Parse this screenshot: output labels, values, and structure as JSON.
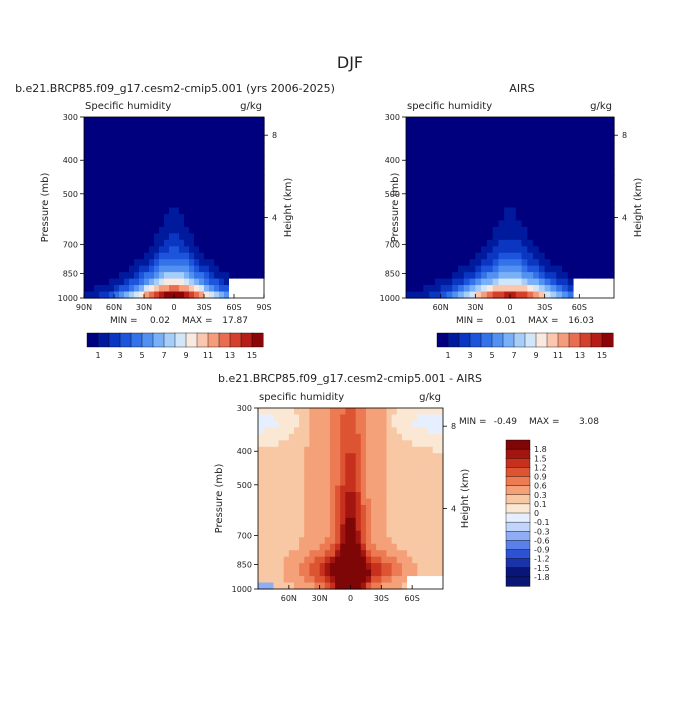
{
  "page": {
    "main_title": "DJF"
  },
  "palettes": {
    "abs": [
      "#00007f",
      "#001a9e",
      "#0a36c2",
      "#1c55db",
      "#3372e8",
      "#5291f2",
      "#79b0f7",
      "#a6cef9",
      "#d2e6fa",
      "#f9e9df",
      "#fac6ae",
      "#f59c7c",
      "#e96d50",
      "#d3412e",
      "#b41e16",
      "#8c0509",
      "#5c0000"
    ],
    "diff": [
      "#0a1578",
      "#1a33a8",
      "#2e52d4",
      "#5a80ea",
      "#8eadf4",
      "#c3d4fa",
      "#e6efff",
      "#fbe8d4",
      "#f8c7a4",
      "#f4a179",
      "#ec7a52",
      "#dd5433",
      "#c6301d",
      "#a21510",
      "#7e0607"
    ]
  },
  "chart_data": [
    {
      "id": "model",
      "type": "heatmap",
      "title": "b.e21.BRCP85.f09_g17.cesm2-cmip5.001 (yrs 2006-2025)",
      "left_label": "Specific humidity",
      "right_label": "g/kg",
      "ylabel": "Pressure (mb)",
      "right_axis_label": "Height (km)",
      "y_ticks": [
        300,
        400,
        500,
        700,
        850,
        1000
      ],
      "right_ticks": [
        8,
        4
      ],
      "x_ticks": [
        "90N",
        "60N",
        "30N",
        "0",
        "30S",
        "60S",
        "90S"
      ],
      "x_tick_lats": [
        90,
        60,
        30,
        0,
        -30,
        -60,
        -90
      ],
      "x_range": [
        90,
        -90
      ],
      "y_range": [
        300,
        1000
      ],
      "min_label": "MIN =",
      "min": "0.02",
      "max_label": "MAX =",
      "max": "17.87",
      "peak": 17.87,
      "missing_right": true,
      "colorbar_ticks": [
        "1",
        "3",
        "5",
        "7",
        "9",
        "11",
        "13",
        "15"
      ],
      "colorbar_levels": 16
    },
    {
      "id": "obs",
      "type": "heatmap",
      "title": "AIRS",
      "left_label": "specific humidity",
      "right_label": "g/kg",
      "ylabel": "Pressure (mb)",
      "right_axis_label": "Height (km)",
      "y_ticks": [
        300,
        400,
        500,
        700,
        850,
        1000
      ],
      "right_ticks": [
        8,
        4
      ],
      "x_ticks": [
        "60N",
        "30N",
        "0",
        "30S",
        "60S"
      ],
      "x_tick_lats": [
        60,
        30,
        0,
        -30,
        -60
      ],
      "x_range": [
        90,
        -90
      ],
      "y_range": [
        300,
        1000
      ],
      "min_label": "MIN =",
      "min": "0.01",
      "max_label": "MAX =",
      "max": "16.03",
      "peak": 16.03,
      "missing_right": true,
      "colorbar_ticks": [
        "1",
        "3",
        "5",
        "7",
        "9",
        "11",
        "13",
        "15"
      ],
      "colorbar_levels": 16
    },
    {
      "id": "diff",
      "type": "heatmap",
      "title": "b.e21.BRCP85.f09_g17.cesm2-cmip5.001 - AIRS",
      "left_label": "specific humidity",
      "right_label": "g/kg",
      "ylabel": "Pressure (mb)",
      "right_axis_label": "Height (km)",
      "y_ticks": [
        300,
        400,
        500,
        700,
        850,
        1000
      ],
      "right_ticks": [
        8,
        4
      ],
      "x_ticks": [
        "60N",
        "30N",
        "0",
        "30S",
        "60S"
      ],
      "x_tick_lats": [
        60,
        30,
        0,
        -30,
        -60
      ],
      "x_range": [
        90,
        -90
      ],
      "y_range": [
        300,
        1000
      ],
      "min_label": "MIN =",
      "min": "-0.49",
      "max_label": "MAX =",
      "max": "3.08",
      "colorbar_ticks": [
        "1.8",
        "1.5",
        "1.2",
        "0.9",
        "0.6",
        "0.3",
        "0.1",
        "0",
        "-0.1",
        "-0.3",
        "-0.6",
        "-0.9",
        "-1.2",
        "-1.5",
        "-1.8"
      ]
    }
  ]
}
